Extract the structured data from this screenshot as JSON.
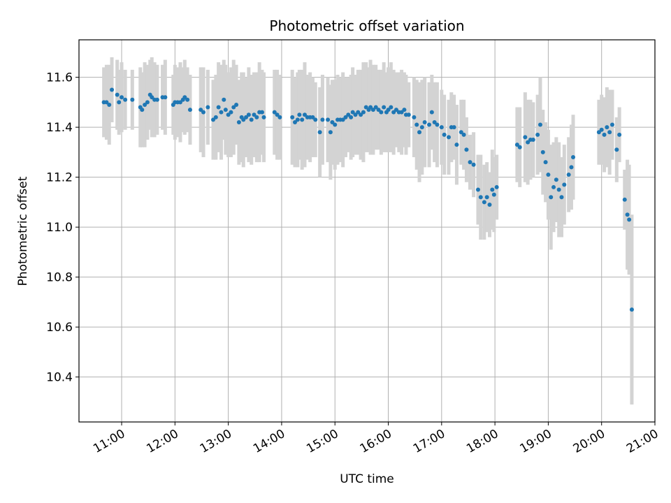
{
  "chart_data": {
    "type": "scatter",
    "title": "Photometric offset variation",
    "xlabel": "UTC time",
    "ylabel": "Photometric offset",
    "x_ticks": [
      "11:00",
      "12:00",
      "13:00",
      "14:00",
      "15:00",
      "16:00",
      "17:00",
      "18:00",
      "19:00",
      "20:00",
      "21:00"
    ],
    "y_ticks": [
      10.4,
      10.6,
      10.8,
      11.0,
      11.2,
      11.4,
      11.6
    ],
    "xlim": [
      "10:12",
      "21:00"
    ],
    "ylim": [
      10.22,
      11.75
    ],
    "grid": true,
    "colors": {
      "point": "#1f77b4",
      "errorbar": "#d3d3d3",
      "grid": "#b0b0b0"
    },
    "series": [
      {
        "points": [
          [
            "10:40",
            11.5,
            0.14
          ],
          [
            "10:43",
            11.5,
            0.15
          ],
          [
            "10:46",
            11.49,
            0.16
          ],
          [
            "10:49",
            11.55,
            0.13
          ],
          [
            "10:55",
            11.53,
            0.14
          ],
          [
            "10:57",
            11.5,
            0.13
          ],
          [
            "11:00",
            11.52,
            0.14
          ],
          [
            "11:04",
            11.51,
            0.12
          ],
          [
            "11:12",
            11.51,
            0.12
          ],
          [
            "11:21",
            11.48,
            0.16
          ],
          [
            "11:23",
            11.47,
            0.15
          ],
          [
            "11:26",
            11.49,
            0.17
          ],
          [
            "11:29",
            11.5,
            0.15
          ],
          [
            "11:32",
            11.53,
            0.14
          ],
          [
            "11:34",
            11.52,
            0.16
          ],
          [
            "11:37",
            11.51,
            0.15
          ],
          [
            "11:40",
            11.51,
            0.14
          ],
          [
            "11:46",
            11.52,
            0.13
          ],
          [
            "11:49",
            11.52,
            0.15
          ],
          [
            "11:58",
            11.49,
            0.12
          ],
          [
            "12:00",
            11.5,
            0.15
          ],
          [
            "12:03",
            11.5,
            0.14
          ],
          [
            "12:06",
            11.5,
            0.16
          ],
          [
            "12:09",
            11.51,
            0.13
          ],
          [
            "12:11",
            11.52,
            0.15
          ],
          [
            "12:14",
            11.51,
            0.13
          ],
          [
            "12:17",
            11.47,
            0.14
          ],
          [
            "12:29",
            11.47,
            0.17
          ],
          [
            "12:32",
            11.46,
            0.18
          ],
          [
            "12:37",
            11.48,
            0.15
          ],
          [
            "12:43",
            11.43,
            0.16
          ],
          [
            "12:46",
            11.44,
            0.17
          ],
          [
            "12:49",
            11.48,
            0.18
          ],
          [
            "12:52",
            11.46,
            0.19
          ],
          [
            "12:55",
            11.51,
            0.16
          ],
          [
            "12:57",
            11.47,
            0.18
          ],
          [
            "13:00",
            11.45,
            0.17
          ],
          [
            "13:03",
            11.46,
            0.18
          ],
          [
            "13:06",
            11.48,
            0.19
          ],
          [
            "13:09",
            11.49,
            0.16
          ],
          [
            "13:12",
            11.42,
            0.17
          ],
          [
            "13:15",
            11.44,
            0.18
          ],
          [
            "13:17",
            11.43,
            0.19
          ],
          [
            "13:20",
            11.44,
            0.16
          ],
          [
            "13:23",
            11.45,
            0.19
          ],
          [
            "13:26",
            11.43,
            0.18
          ],
          [
            "13:29",
            11.45,
            0.17
          ],
          [
            "13:32",
            11.44,
            0.18
          ],
          [
            "13:35",
            11.46,
            0.2
          ],
          [
            "13:38",
            11.46,
            0.17
          ],
          [
            "13:40",
            11.44,
            0.18
          ],
          [
            "13:52",
            11.46,
            0.17
          ],
          [
            "13:55",
            11.45,
            0.18
          ],
          [
            "13:58",
            11.44,
            0.17
          ],
          [
            "14:12",
            11.44,
            0.19
          ],
          [
            "14:15",
            11.42,
            0.18
          ],
          [
            "14:18",
            11.43,
            0.19
          ],
          [
            "14:20",
            11.45,
            0.18
          ],
          [
            "14:23",
            11.43,
            0.2
          ],
          [
            "14:26",
            11.45,
            0.21
          ],
          [
            "14:29",
            11.44,
            0.17
          ],
          [
            "14:32",
            11.44,
            0.18
          ],
          [
            "14:35",
            11.44,
            0.16
          ],
          [
            "14:38",
            11.43,
            0.15
          ],
          [
            "14:43",
            11.38,
            0.18
          ],
          [
            "14:46",
            11.43,
            0.18
          ],
          [
            "14:52",
            11.43,
            0.17
          ],
          [
            "14:55",
            11.38,
            0.19
          ],
          [
            "14:57",
            11.42,
            0.17
          ],
          [
            "15:00",
            11.41,
            0.18
          ],
          [
            "15:03",
            11.43,
            0.18
          ],
          [
            "15:06",
            11.43,
            0.17
          ],
          [
            "15:09",
            11.43,
            0.19
          ],
          [
            "15:12",
            11.44,
            0.16
          ],
          [
            "15:15",
            11.45,
            0.15
          ],
          [
            "15:18",
            11.44,
            0.17
          ],
          [
            "15:20",
            11.46,
            0.18
          ],
          [
            "15:23",
            11.45,
            0.16
          ],
          [
            "15:26",
            11.46,
            0.17
          ],
          [
            "15:29",
            11.45,
            0.18
          ],
          [
            "15:32",
            11.46,
            0.2
          ],
          [
            "15:35",
            11.48,
            0.18
          ],
          [
            "15:38",
            11.47,
            0.17
          ],
          [
            "15:40",
            11.48,
            0.19
          ],
          [
            "15:43",
            11.47,
            0.18
          ],
          [
            "15:46",
            11.48,
            0.17
          ],
          [
            "15:49",
            11.47,
            0.16
          ],
          [
            "15:52",
            11.46,
            0.17
          ],
          [
            "15:55",
            11.48,
            0.18
          ],
          [
            "15:58",
            11.46,
            0.16
          ],
          [
            "16:00",
            11.47,
            0.17
          ],
          [
            "16:03",
            11.48,
            0.18
          ],
          [
            "16:06",
            11.46,
            0.17
          ],
          [
            "16:09",
            11.47,
            0.15
          ],
          [
            "16:12",
            11.46,
            0.16
          ],
          [
            "16:15",
            11.46,
            0.17
          ],
          [
            "16:18",
            11.47,
            0.15
          ],
          [
            "16:20",
            11.45,
            0.16
          ],
          [
            "16:23",
            11.45,
            0.13
          ],
          [
            "16:29",
            11.44,
            0.16
          ],
          [
            "16:32",
            11.41,
            0.18
          ],
          [
            "16:35",
            11.38,
            0.2
          ],
          [
            "16:38",
            11.4,
            0.19
          ],
          [
            "16:41",
            11.42,
            0.18
          ],
          [
            "16:46",
            11.41,
            0.17
          ],
          [
            "16:49",
            11.46,
            0.15
          ],
          [
            "16:52",
            11.42,
            0.16
          ],
          [
            "16:55",
            11.41,
            0.17
          ],
          [
            "17:00",
            11.4,
            0.15
          ],
          [
            "17:03",
            11.37,
            0.16
          ],
          [
            "17:08",
            11.36,
            0.15
          ],
          [
            "17:11",
            11.4,
            0.14
          ],
          [
            "17:14",
            11.4,
            0.13
          ],
          [
            "17:17",
            11.33,
            0.16
          ],
          [
            "17:22",
            11.38,
            0.13
          ],
          [
            "17:25",
            11.37,
            0.14
          ],
          [
            "17:28",
            11.31,
            0.13
          ],
          [
            "17:32",
            11.26,
            0.11
          ],
          [
            "17:36",
            11.25,
            0.13
          ],
          [
            "17:41",
            11.15,
            0.14
          ],
          [
            "17:44",
            11.12,
            0.17
          ],
          [
            "17:48",
            11.1,
            0.15
          ],
          [
            "17:51",
            11.12,
            0.14
          ],
          [
            "17:54",
            11.09,
            0.13
          ],
          [
            "17:57",
            11.15,
            0.16
          ],
          [
            "17:59",
            11.13,
            0.15
          ],
          [
            "18:02",
            11.16,
            0.13
          ],
          [
            "18:25",
            11.33,
            0.15
          ],
          [
            "18:28",
            11.32,
            0.16
          ],
          [
            "18:34",
            11.36,
            0.18
          ],
          [
            "18:37",
            11.34,
            0.17
          ],
          [
            "18:40",
            11.35,
            0.16
          ],
          [
            "18:43",
            11.35,
            0.15
          ],
          [
            "18:48",
            11.37,
            0.16
          ],
          [
            "18:51",
            11.41,
            0.19
          ],
          [
            "18:54",
            11.3,
            0.17
          ],
          [
            "18:57",
            11.26,
            0.16
          ],
          [
            "19:00",
            11.21,
            0.18
          ],
          [
            "19:03",
            11.12,
            0.21
          ],
          [
            "19:06",
            11.16,
            0.18
          ],
          [
            "19:09",
            11.19,
            0.17
          ],
          [
            "19:12",
            11.15,
            0.19
          ],
          [
            "19:15",
            11.12,
            0.16
          ],
          [
            "19:18",
            11.17,
            0.16
          ],
          [
            "19:23",
            11.21,
            0.15
          ],
          [
            "19:26",
            11.24,
            0.17
          ],
          [
            "19:28",
            11.28,
            0.17
          ],
          [
            "19:57",
            11.38,
            0.13
          ],
          [
            "20:00",
            11.39,
            0.14
          ],
          [
            "20:03",
            11.37,
            0.15
          ],
          [
            "20:06",
            11.4,
            0.16
          ],
          [
            "20:09",
            11.38,
            0.17
          ],
          [
            "20:12",
            11.41,
            0.14
          ],
          [
            "20:17",
            11.31,
            0.13
          ],
          [
            "20:20",
            11.37,
            0.11
          ],
          [
            "20:26",
            11.11,
            0.12
          ],
          [
            "20:29",
            11.05,
            0.22
          ],
          [
            "20:31",
            11.03,
            0.22
          ],
          [
            "20:34",
            10.67,
            0.38
          ]
        ]
      }
    ]
  }
}
